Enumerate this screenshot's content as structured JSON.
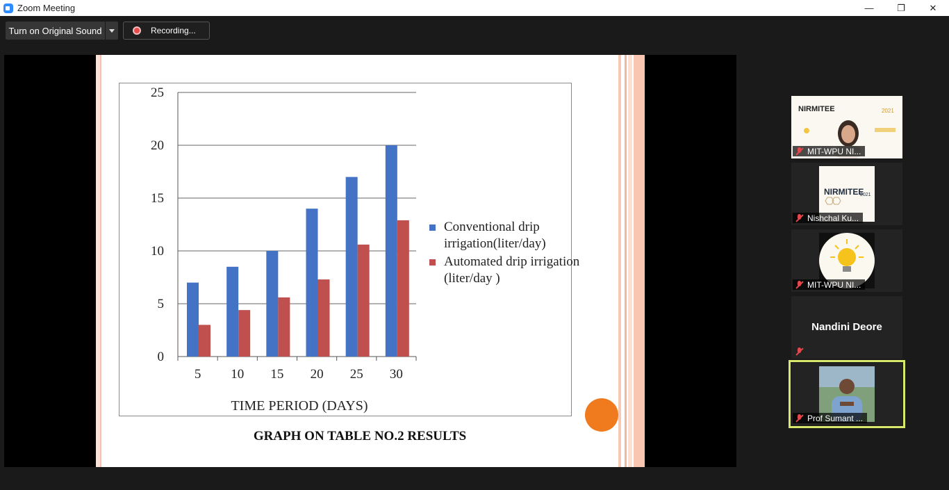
{
  "window": {
    "title": "Zoom Meeting",
    "minimize": "—",
    "restore": "❐",
    "close": "✕"
  },
  "toolbar": {
    "sound_button": "Turn on Original Sound",
    "recording": "Recording..."
  },
  "slide": {
    "caption": "GRAPH ON TABLE NO.2 RESULTS",
    "chart_data": {
      "type": "bar",
      "xlabel": "TIME PERIOD (DAYS)",
      "ylabel": "",
      "categories": [
        "5",
        "10",
        "15",
        "20",
        "25",
        "30"
      ],
      "ylim": [
        0,
        25
      ],
      "yticks": [
        "0",
        "5",
        "10",
        "15",
        "20",
        "25"
      ],
      "grid": true,
      "legend_position": "right",
      "series": [
        {
          "name": "Conventional drip irrigation(liter/day)",
          "color": "#4472c4",
          "values": [
            7,
            8.5,
            10,
            14,
            17,
            20
          ]
        },
        {
          "name": "Automated drip irrigation (liter/day )",
          "color": "#c0504d",
          "values": [
            3,
            4.4,
            5.6,
            7.3,
            10.6,
            12.9
          ]
        }
      ]
    }
  },
  "participants": [
    {
      "name": "MIT-WPU NI...",
      "type": "video"
    },
    {
      "name": "Nishchal Ku...",
      "type": "video"
    },
    {
      "name": "MIT-WPU NI...",
      "type": "video"
    },
    {
      "name": "Nandini Deore",
      "type": "no-video"
    },
    {
      "name": "Prof Sumant ...",
      "type": "video",
      "active": true
    }
  ],
  "tile_text": {
    "nirmitee": "NIRMITEE",
    "year": "2021"
  }
}
